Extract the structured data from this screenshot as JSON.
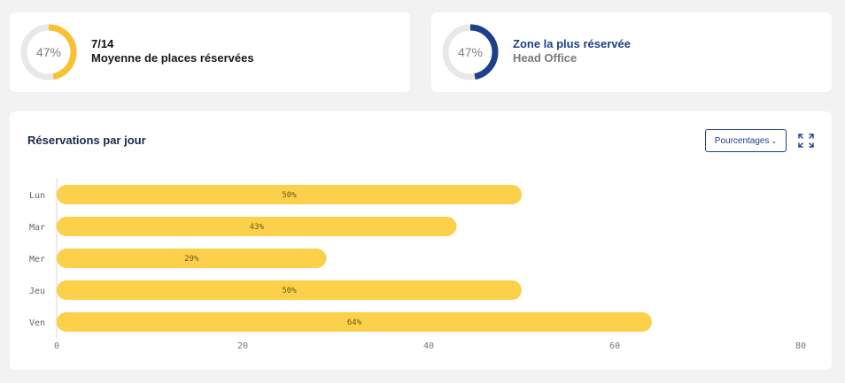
{
  "kpi_avg": {
    "percent": 47,
    "percent_label": "47%",
    "value": "7/14",
    "label": "Moyenne de places réservées",
    "color": "#fbc02d"
  },
  "kpi_zone": {
    "percent": 47,
    "percent_label": "47%",
    "title": "Zone la plus réservée",
    "subtitle": "Head Office",
    "color": "#1e3f8a"
  },
  "chart_section": {
    "title": "Réservations par jour",
    "dropdown_label": "Pourcentages",
    "expand_icon": "expand-icon"
  },
  "colors": {
    "bar": "#fcd04a",
    "track": "#e8e8e8",
    "accent": "#1e3f8a"
  },
  "chart_data": {
    "type": "bar",
    "orientation": "horizontal",
    "title": "Réservations par jour",
    "categories": [
      "Lun",
      "Mar",
      "Mer",
      "Jeu",
      "Ven"
    ],
    "values": [
      50,
      43,
      29,
      50,
      64
    ],
    "value_labels": [
      "50%",
      "43%",
      "29%",
      "50%",
      "64%"
    ],
    "xlim": [
      0,
      80
    ],
    "xticks": [
      0,
      20,
      40,
      60,
      80
    ],
    "grid": false,
    "legend": "none"
  }
}
